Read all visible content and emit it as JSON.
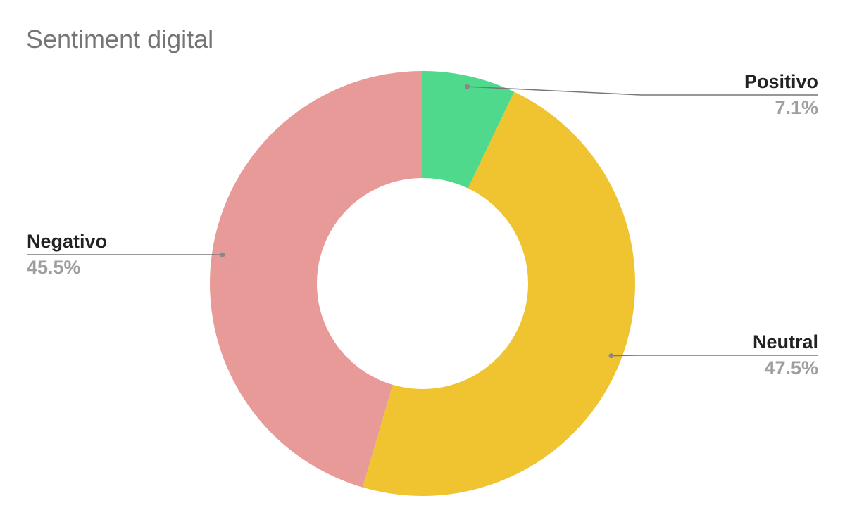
{
  "chart_data": {
    "type": "donut",
    "title": "Sentiment digital",
    "categories": [
      "Positivo",
      "Neutral",
      "Negativo"
    ],
    "values": [
      7.1,
      47.5,
      45.5
    ],
    "value_labels": [
      "7.1%",
      "47.5%",
      "45.5%"
    ],
    "colors": [
      "#4fd98c",
      "#f0c330",
      "#e89a99"
    ]
  }
}
